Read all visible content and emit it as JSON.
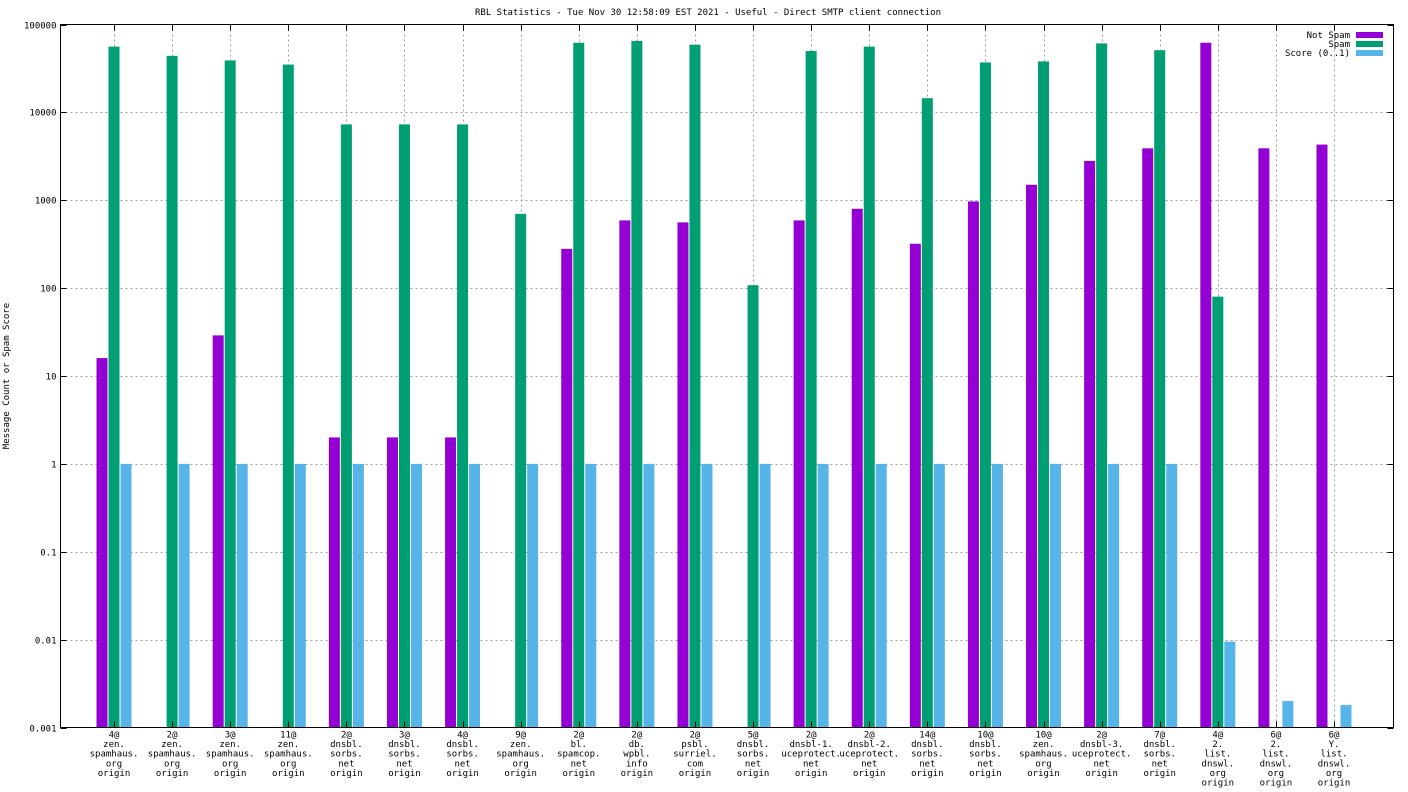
{
  "chart_data": {
    "type": "bar",
    "title": "RBL Statistics - Tue Nov 30 12:58:09 EST 2021 - Useful - Direct SMTP client connection",
    "xlabel": "",
    "ylabel": "Message Count or Spam Score",
    "yscale": "log",
    "ylim": [
      0.001,
      100000
    ],
    "ytick_labels": [
      "0.001",
      "0.01",
      "0.1",
      "1",
      "10",
      "100",
      "1000",
      "10000",
      "100000"
    ],
    "ytick_values": [
      0.001,
      0.01,
      0.1,
      1,
      10,
      100,
      1000,
      10000,
      100000
    ],
    "grid": true,
    "legend_position": "top-right",
    "categories": [
      [
        "4@",
        "zen.",
        "spamhaus.",
        "org",
        "origin"
      ],
      [
        "2@",
        "zen.",
        "spamhaus.",
        "org",
        "origin"
      ],
      [
        "3@",
        "zen.",
        "spamhaus.",
        "org",
        "origin"
      ],
      [
        "11@",
        "zen.",
        "spamhaus.",
        "org",
        "origin"
      ],
      [
        "2@",
        "dnsbl.",
        "sorbs.",
        "net",
        "origin"
      ],
      [
        "3@",
        "dnsbl.",
        "sorbs.",
        "net",
        "origin"
      ],
      [
        "4@",
        "dnsbl.",
        "sorbs.",
        "net",
        "origin"
      ],
      [
        "9@",
        "zen.",
        "spamhaus.",
        "org",
        "origin"
      ],
      [
        "2@",
        "bl.",
        "spamcop.",
        "net",
        "origin"
      ],
      [
        "2@",
        "db.",
        "wpbl.",
        "info",
        "origin"
      ],
      [
        "2@",
        "psbl.",
        "surriel.",
        "com",
        "origin"
      ],
      [
        "5@",
        "dnsbl.",
        "sorbs.",
        "net",
        "origin"
      ],
      [
        "2@",
        "dnsbl-1.",
        "uceprotect.",
        "net",
        "origin"
      ],
      [
        "2@",
        "dnsbl-2.",
        "uceprotect.",
        "net",
        "origin"
      ],
      [
        "14@",
        "dnsbl.",
        "sorbs.",
        "net",
        "origin"
      ],
      [
        "10@",
        "dnsbl.",
        "sorbs.",
        "net",
        "origin"
      ],
      [
        "10@",
        "zen.",
        "spamhaus.",
        "org",
        "origin"
      ],
      [
        "2@",
        "dnsbl-3.",
        "uceprotect.",
        "net",
        "origin"
      ],
      [
        "7@",
        "dnsbl.",
        "sorbs.",
        "net",
        "origin"
      ],
      [
        "4@",
        "2.",
        "list.",
        "dnswl.",
        "org",
        "origin"
      ],
      [
        "6@",
        "2.",
        "list.",
        "dnswl.",
        "org",
        "origin"
      ],
      [
        "6@",
        "Y.",
        "list.",
        "dnswl.",
        "org",
        "origin"
      ]
    ],
    "series": [
      {
        "name": "Not Spam",
        "color": "#9400d3",
        "values": [
          16,
          null,
          29,
          null,
          2,
          2,
          2,
          null,
          280,
          590,
          560,
          null,
          590,
          800,
          320,
          970,
          1500,
          2800,
          3900,
          62000,
          3900,
          4300
        ]
      },
      {
        "name": "Spam",
        "color": "#009e73",
        "values": [
          56000,
          44000,
          39000,
          35000,
          7300,
          7300,
          7300,
          700,
          62000,
          65000,
          59000,
          108,
          50000,
          56000,
          14500,
          37000,
          38000,
          61000,
          51000,
          80,
          null,
          null
        ]
      },
      {
        "name": "Score (0..1)",
        "color": "#56b4e9",
        "values": [
          1,
          1,
          1,
          1,
          1,
          1,
          1,
          1,
          1,
          1,
          1,
          1,
          1,
          1,
          1,
          1,
          1,
          1,
          1,
          0.0095,
          0.002,
          0.0018
        ]
      }
    ]
  }
}
